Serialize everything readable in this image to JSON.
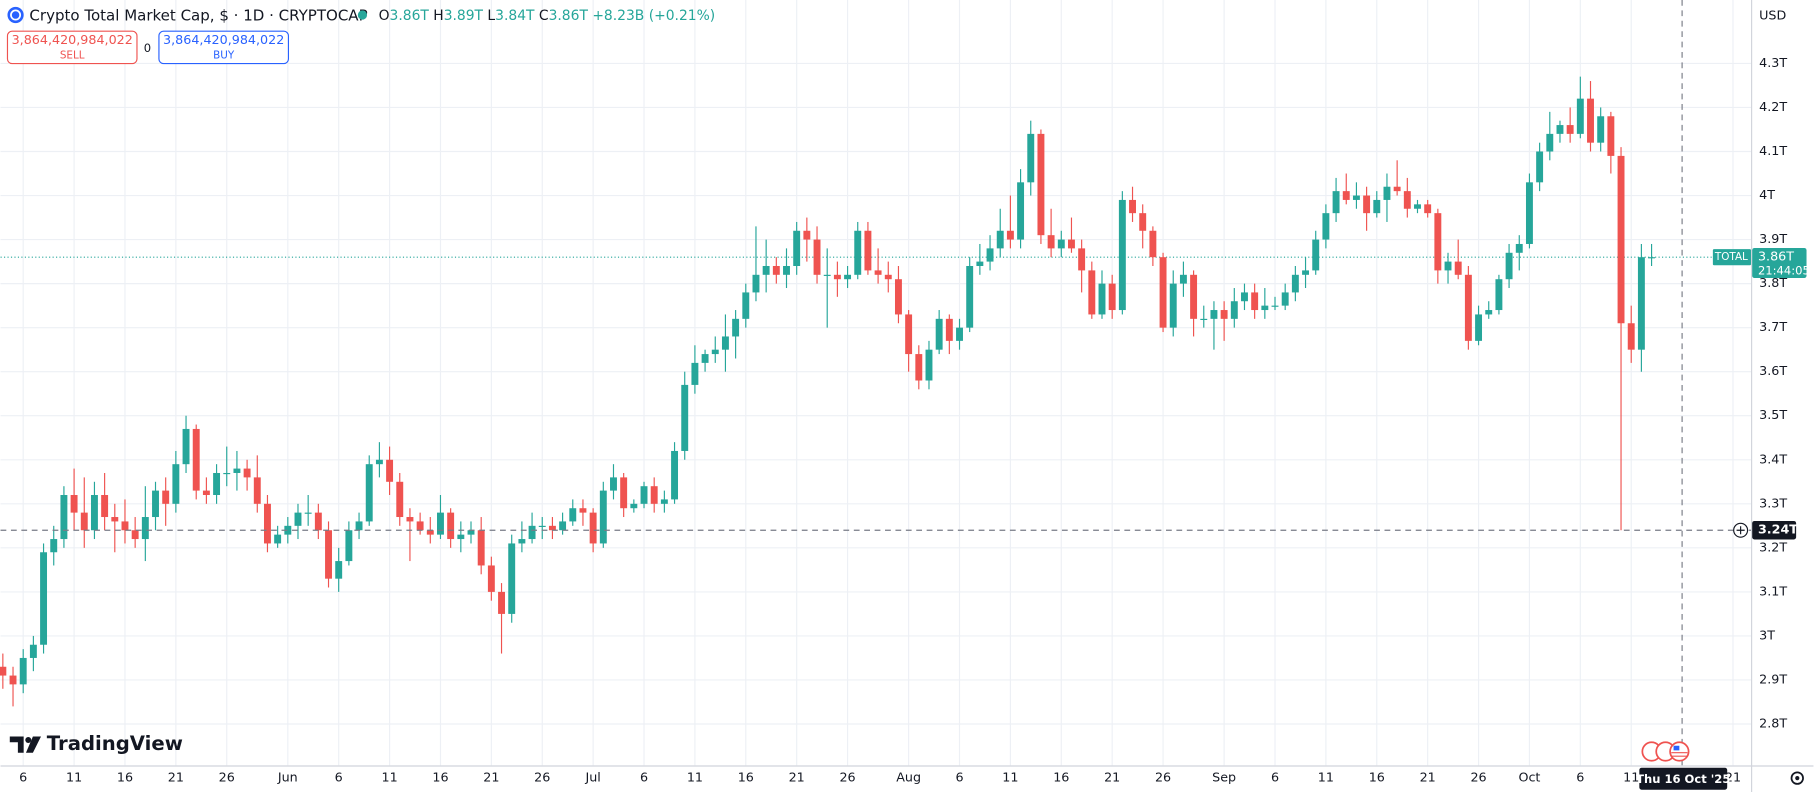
{
  "chart_data": {
    "type": "candlestick",
    "title": "Crypto Total Market Cap, $ · 1D · CRYPTOCAP",
    "legend_ohlc": [
      {
        "key": "O",
        "value": "3.86T"
      },
      {
        "key": "H",
        "value": "3.89T"
      },
      {
        "key": "L",
        "value": "3.84T"
      },
      {
        "key": "C",
        "value": "3.86T"
      }
    ],
    "change": "+8.23B (+0.21%)",
    "sell": {
      "price": "3,864,420,984,022",
      "label": "SELL"
    },
    "spread": "0",
    "buy": {
      "price": "3,864,420,984,022",
      "label": "BUY"
    },
    "currency": "USD",
    "up_color": "#26a69a",
    "down_color": "#ef5350",
    "x": [
      "2025-05-04",
      "2025-05-05",
      "2025-05-06",
      "2025-05-07",
      "2025-05-08",
      "2025-05-09",
      "2025-05-10",
      "2025-05-11",
      "2025-05-12",
      "2025-05-13",
      "2025-05-14",
      "2025-05-15",
      "2025-05-16",
      "2025-05-17",
      "2025-05-18",
      "2025-05-19",
      "2025-05-20",
      "2025-05-21",
      "2025-05-22",
      "2025-05-23",
      "2025-05-24",
      "2025-05-25",
      "2025-05-26",
      "2025-05-27",
      "2025-05-28",
      "2025-05-29",
      "2025-05-30",
      "2025-05-31",
      "2025-06-01",
      "2025-06-02",
      "2025-06-03",
      "2025-06-04",
      "2025-06-05",
      "2025-06-06",
      "2025-06-07",
      "2025-06-08",
      "2025-06-09",
      "2025-06-10",
      "2025-06-11",
      "2025-06-12",
      "2025-06-13",
      "2025-06-14",
      "2025-06-15",
      "2025-06-16",
      "2025-06-17",
      "2025-06-18",
      "2025-06-19",
      "2025-06-20",
      "2025-06-21",
      "2025-06-22",
      "2025-06-23",
      "2025-06-24",
      "2025-06-25",
      "2025-06-26",
      "2025-06-27",
      "2025-06-28",
      "2025-06-29",
      "2025-06-30",
      "2025-07-01",
      "2025-07-02",
      "2025-07-03",
      "2025-07-04",
      "2025-07-05",
      "2025-07-06",
      "2025-07-07",
      "2025-07-08",
      "2025-07-09",
      "2025-07-10",
      "2025-07-11",
      "2025-07-12",
      "2025-07-13",
      "2025-07-14",
      "2025-07-15",
      "2025-07-16",
      "2025-07-17",
      "2025-07-18",
      "2025-07-19",
      "2025-07-20",
      "2025-07-21",
      "2025-07-22",
      "2025-07-23",
      "2025-07-24",
      "2025-07-25",
      "2025-07-26",
      "2025-07-27",
      "2025-07-28",
      "2025-07-29",
      "2025-07-30",
      "2025-07-31",
      "2025-08-01",
      "2025-08-02",
      "2025-08-03",
      "2025-08-04",
      "2025-08-05",
      "2025-08-06",
      "2025-08-07",
      "2025-08-08",
      "2025-08-09",
      "2025-08-10",
      "2025-08-11",
      "2025-08-12",
      "2025-08-13",
      "2025-08-14",
      "2025-08-15",
      "2025-08-16",
      "2025-08-17",
      "2025-08-18",
      "2025-08-19",
      "2025-08-20",
      "2025-08-21",
      "2025-08-22",
      "2025-08-23",
      "2025-08-24",
      "2025-08-25",
      "2025-08-26",
      "2025-08-27",
      "2025-08-28",
      "2025-08-29",
      "2025-08-30",
      "2025-08-31",
      "2025-09-01",
      "2025-09-02",
      "2025-09-03",
      "2025-09-04",
      "2025-09-05",
      "2025-09-06",
      "2025-09-07",
      "2025-09-08",
      "2025-09-09",
      "2025-09-10",
      "2025-09-11",
      "2025-09-12",
      "2025-09-13",
      "2025-09-14",
      "2025-09-15",
      "2025-09-16",
      "2025-09-17",
      "2025-09-18",
      "2025-09-19",
      "2025-09-20",
      "2025-09-21",
      "2025-09-22",
      "2025-09-23",
      "2025-09-24",
      "2025-09-25",
      "2025-09-26",
      "2025-09-27",
      "2025-09-28",
      "2025-09-29",
      "2025-09-30",
      "2025-10-01",
      "2025-10-02",
      "2025-10-03",
      "2025-10-04",
      "2025-10-05",
      "2025-10-06",
      "2025-10-07",
      "2025-10-08",
      "2025-10-09",
      "2025-10-10",
      "2025-10-11",
      "2025-10-12",
      "2025-10-13"
    ],
    "ohlc": [
      [
        2.93,
        2.96,
        2.88,
        2.91
      ],
      [
        2.91,
        2.93,
        2.84,
        2.89
      ],
      [
        2.89,
        2.97,
        2.87,
        2.95
      ],
      [
        2.95,
        3.0,
        2.92,
        2.98
      ],
      [
        2.98,
        3.21,
        2.96,
        3.19
      ],
      [
        3.19,
        3.25,
        3.16,
        3.22
      ],
      [
        3.22,
        3.34,
        3.2,
        3.32
      ],
      [
        3.32,
        3.38,
        3.24,
        3.28
      ],
      [
        3.28,
        3.36,
        3.2,
        3.24
      ],
      [
        3.24,
        3.35,
        3.22,
        3.32
      ],
      [
        3.32,
        3.37,
        3.24,
        3.27
      ],
      [
        3.27,
        3.3,
        3.19,
        3.26
      ],
      [
        3.26,
        3.31,
        3.21,
        3.24
      ],
      [
        3.24,
        3.27,
        3.2,
        3.22
      ],
      [
        3.22,
        3.34,
        3.17,
        3.27
      ],
      [
        3.27,
        3.35,
        3.24,
        3.33
      ],
      [
        3.33,
        3.36,
        3.25,
        3.3
      ],
      [
        3.3,
        3.42,
        3.28,
        3.39
      ],
      [
        3.39,
        3.5,
        3.37,
        3.47
      ],
      [
        3.47,
        3.48,
        3.31,
        3.33
      ],
      [
        3.33,
        3.36,
        3.3,
        3.32
      ],
      [
        3.32,
        3.39,
        3.3,
        3.37
      ],
      [
        3.37,
        3.43,
        3.34,
        3.37
      ],
      [
        3.37,
        3.42,
        3.33,
        3.38
      ],
      [
        3.38,
        3.4,
        3.33,
        3.36
      ],
      [
        3.36,
        3.41,
        3.28,
        3.3
      ],
      [
        3.3,
        3.32,
        3.19,
        3.21
      ],
      [
        3.21,
        3.25,
        3.2,
        3.23
      ],
      [
        3.23,
        3.27,
        3.21,
        3.25
      ],
      [
        3.25,
        3.3,
        3.22,
        3.28
      ],
      [
        3.28,
        3.32,
        3.25,
        3.28
      ],
      [
        3.28,
        3.3,
        3.22,
        3.24
      ],
      [
        3.24,
        3.26,
        3.11,
        3.13
      ],
      [
        3.13,
        3.2,
        3.1,
        3.17
      ],
      [
        3.17,
        3.26,
        3.16,
        3.24
      ],
      [
        3.24,
        3.28,
        3.22,
        3.26
      ],
      [
        3.26,
        3.41,
        3.25,
        3.39
      ],
      [
        3.39,
        3.44,
        3.36,
        3.4
      ],
      [
        3.4,
        3.43,
        3.32,
        3.35
      ],
      [
        3.35,
        3.37,
        3.25,
        3.27
      ],
      [
        3.27,
        3.29,
        3.17,
        3.26
      ],
      [
        3.26,
        3.28,
        3.23,
        3.24
      ],
      [
        3.24,
        3.27,
        3.21,
        3.23
      ],
      [
        3.23,
        3.32,
        3.22,
        3.28
      ],
      [
        3.28,
        3.29,
        3.2,
        3.22
      ],
      [
        3.22,
        3.26,
        3.19,
        3.23
      ],
      [
        3.23,
        3.26,
        3.21,
        3.24
      ],
      [
        3.24,
        3.27,
        3.14,
        3.16
      ],
      [
        3.16,
        3.18,
        3.08,
        3.1
      ],
      [
        3.1,
        3.12,
        2.96,
        3.05
      ],
      [
        3.05,
        3.23,
        3.03,
        3.21
      ],
      [
        3.21,
        3.26,
        3.19,
        3.22
      ],
      [
        3.22,
        3.28,
        3.21,
        3.25
      ],
      [
        3.25,
        3.27,
        3.22,
        3.25
      ],
      [
        3.25,
        3.27,
        3.22,
        3.24
      ],
      [
        3.24,
        3.28,
        3.23,
        3.26
      ],
      [
        3.26,
        3.31,
        3.25,
        3.29
      ],
      [
        3.29,
        3.31,
        3.25,
        3.28
      ],
      [
        3.28,
        3.29,
        3.19,
        3.21
      ],
      [
        3.21,
        3.35,
        3.2,
        3.33
      ],
      [
        3.33,
        3.39,
        3.31,
        3.36
      ],
      [
        3.36,
        3.37,
        3.27,
        3.29
      ],
      [
        3.29,
        3.31,
        3.28,
        3.3
      ],
      [
        3.3,
        3.35,
        3.29,
        3.34
      ],
      [
        3.34,
        3.36,
        3.28,
        3.3
      ],
      [
        3.3,
        3.33,
        3.28,
        3.31
      ],
      [
        3.31,
        3.44,
        3.3,
        3.42
      ],
      [
        3.42,
        3.6,
        3.4,
        3.57
      ],
      [
        3.57,
        3.66,
        3.55,
        3.62
      ],
      [
        3.62,
        3.65,
        3.6,
        3.64
      ],
      [
        3.64,
        3.68,
        3.62,
        3.65
      ],
      [
        3.65,
        3.73,
        3.6,
        3.68
      ],
      [
        3.68,
        3.74,
        3.63,
        3.72
      ],
      [
        3.72,
        3.8,
        3.7,
        3.78
      ],
      [
        3.78,
        3.93,
        3.76,
        3.82
      ],
      [
        3.82,
        3.9,
        3.78,
        3.84
      ],
      [
        3.84,
        3.86,
        3.8,
        3.82
      ],
      [
        3.82,
        3.88,
        3.79,
        3.84
      ],
      [
        3.84,
        3.94,
        3.82,
        3.92
      ],
      [
        3.92,
        3.95,
        3.85,
        3.9
      ],
      [
        3.9,
        3.93,
        3.8,
        3.82
      ],
      [
        3.82,
        3.88,
        3.7,
        3.82
      ],
      [
        3.82,
        3.85,
        3.77,
        3.81
      ],
      [
        3.81,
        3.84,
        3.79,
        3.82
      ],
      [
        3.82,
        3.94,
        3.81,
        3.92
      ],
      [
        3.92,
        3.94,
        3.82,
        3.83
      ],
      [
        3.83,
        3.88,
        3.8,
        3.82
      ],
      [
        3.82,
        3.85,
        3.78,
        3.81
      ],
      [
        3.81,
        3.84,
        3.71,
        3.73
      ],
      [
        3.73,
        3.74,
        3.6,
        3.64
      ],
      [
        3.64,
        3.66,
        3.56,
        3.58
      ],
      [
        3.58,
        3.67,
        3.56,
        3.65
      ],
      [
        3.65,
        3.74,
        3.64,
        3.72
      ],
      [
        3.72,
        3.73,
        3.64,
        3.67
      ],
      [
        3.67,
        3.72,
        3.65,
        3.7
      ],
      [
        3.7,
        3.86,
        3.69,
        3.84
      ],
      [
        3.84,
        3.89,
        3.82,
        3.85
      ],
      [
        3.85,
        3.91,
        3.83,
        3.88
      ],
      [
        3.88,
        3.97,
        3.86,
        3.92
      ],
      [
        3.92,
        4.0,
        3.88,
        3.9
      ],
      [
        3.9,
        4.06,
        3.88,
        4.03
      ],
      [
        4.03,
        4.17,
        4.0,
        4.14
      ],
      [
        4.14,
        4.15,
        3.89,
        3.91
      ],
      [
        3.91,
        3.97,
        3.86,
        3.88
      ],
      [
        3.88,
        3.92,
        3.86,
        3.9
      ],
      [
        3.9,
        3.95,
        3.87,
        3.88
      ],
      [
        3.88,
        3.9,
        3.78,
        3.83
      ],
      [
        3.83,
        3.85,
        3.72,
        3.73
      ],
      [
        3.73,
        3.83,
        3.72,
        3.8
      ],
      [
        3.8,
        3.82,
        3.72,
        3.74
      ],
      [
        3.74,
        4.01,
        3.73,
        3.99
      ],
      [
        3.99,
        4.02,
        3.94,
        3.96
      ],
      [
        3.96,
        3.98,
        3.88,
        3.92
      ],
      [
        3.92,
        3.93,
        3.84,
        3.86
      ],
      [
        3.86,
        3.87,
        3.69,
        3.7
      ],
      [
        3.7,
        3.83,
        3.68,
        3.8
      ],
      [
        3.8,
        3.85,
        3.77,
        3.82
      ],
      [
        3.82,
        3.83,
        3.68,
        3.72
      ],
      [
        3.72,
        3.75,
        3.7,
        3.72
      ],
      [
        3.72,
        3.76,
        3.65,
        3.74
      ],
      [
        3.74,
        3.76,
        3.67,
        3.72
      ],
      [
        3.72,
        3.79,
        3.7,
        3.76
      ],
      [
        3.76,
        3.8,
        3.74,
        3.78
      ],
      [
        3.78,
        3.8,
        3.72,
        3.74
      ],
      [
        3.74,
        3.79,
        3.72,
        3.75
      ],
      [
        3.75,
        3.77,
        3.74,
        3.75
      ],
      [
        3.75,
        3.8,
        3.74,
        3.78
      ],
      [
        3.78,
        3.84,
        3.76,
        3.82
      ],
      [
        3.82,
        3.86,
        3.79,
        3.83
      ],
      [
        3.83,
        3.92,
        3.82,
        3.9
      ],
      [
        3.9,
        3.98,
        3.88,
        3.96
      ],
      [
        3.96,
        4.04,
        3.94,
        4.01
      ],
      [
        4.01,
        4.05,
        3.98,
        3.99
      ],
      [
        3.99,
        4.03,
        3.97,
        4.0
      ],
      [
        4.0,
        4.02,
        3.92,
        3.96
      ],
      [
        3.96,
        4.01,
        3.95,
        3.99
      ],
      [
        3.99,
        4.05,
        3.94,
        4.02
      ],
      [
        4.02,
        4.08,
        4.0,
        4.01
      ],
      [
        4.01,
        4.04,
        3.95,
        3.97
      ],
      [
        3.97,
        3.99,
        3.96,
        3.98
      ],
      [
        3.98,
        3.99,
        3.95,
        3.96
      ],
      [
        3.96,
        3.97,
        3.8,
        3.83
      ],
      [
        3.83,
        3.87,
        3.8,
        3.85
      ],
      [
        3.85,
        3.9,
        3.81,
        3.82
      ],
      [
        3.82,
        3.84,
        3.65,
        3.67
      ],
      [
        3.67,
        3.75,
        3.66,
        3.73
      ],
      [
        3.73,
        3.76,
        3.72,
        3.74
      ],
      [
        3.74,
        3.82,
        3.73,
        3.81
      ],
      [
        3.81,
        3.89,
        3.79,
        3.87
      ],
      [
        3.87,
        3.91,
        3.83,
        3.89
      ],
      [
        3.89,
        4.05,
        3.88,
        4.03
      ],
      [
        4.03,
        4.12,
        4.01,
        4.1
      ],
      [
        4.1,
        4.19,
        4.08,
        4.14
      ],
      [
        4.14,
        4.17,
        4.12,
        4.16
      ],
      [
        4.16,
        4.2,
        4.12,
        4.14
      ],
      [
        4.14,
        4.27,
        4.13,
        4.22
      ],
      [
        4.22,
        4.26,
        4.1,
        4.12
      ],
      [
        4.12,
        4.2,
        4.1,
        4.18
      ],
      [
        4.18,
        4.19,
        4.05,
        4.09
      ],
      [
        4.09,
        4.11,
        3.24,
        3.71
      ],
      [
        3.71,
        3.75,
        3.62,
        3.65
      ],
      [
        3.65,
        3.89,
        3.6,
        3.86
      ],
      [
        3.86,
        3.89,
        3.84,
        3.86
      ]
    ],
    "xlim": [
      "2025-05-04",
      "2025-10-23"
    ],
    "xticks": [
      {
        "value": "2025-05-06",
        "label": "6"
      },
      {
        "value": "2025-05-11",
        "label": "11"
      },
      {
        "value": "2025-05-16",
        "label": "16"
      },
      {
        "value": "2025-05-21",
        "label": "21"
      },
      {
        "value": "2025-05-26",
        "label": "26"
      },
      {
        "value": "2025-06-01",
        "label": "Jun"
      },
      {
        "value": "2025-06-06",
        "label": "6"
      },
      {
        "value": "2025-06-11",
        "label": "11"
      },
      {
        "value": "2025-06-16",
        "label": "16"
      },
      {
        "value": "2025-06-21",
        "label": "21"
      },
      {
        "value": "2025-06-26",
        "label": "26"
      },
      {
        "value": "2025-07-01",
        "label": "Jul"
      },
      {
        "value": "2025-07-06",
        "label": "6"
      },
      {
        "value": "2025-07-11",
        "label": "11"
      },
      {
        "value": "2025-07-16",
        "label": "16"
      },
      {
        "value": "2025-07-21",
        "label": "21"
      },
      {
        "value": "2025-07-26",
        "label": "26"
      },
      {
        "value": "2025-08-01",
        "label": "Aug"
      },
      {
        "value": "2025-08-06",
        "label": "6"
      },
      {
        "value": "2025-08-11",
        "label": "11"
      },
      {
        "value": "2025-08-16",
        "label": "16"
      },
      {
        "value": "2025-08-21",
        "label": "21"
      },
      {
        "value": "2025-08-26",
        "label": "26"
      },
      {
        "value": "2025-09-01",
        "label": "Sep"
      },
      {
        "value": "2025-09-06",
        "label": "6"
      },
      {
        "value": "2025-09-11",
        "label": "11"
      },
      {
        "value": "2025-09-16",
        "label": "16"
      },
      {
        "value": "2025-09-21",
        "label": "21"
      },
      {
        "value": "2025-09-26",
        "label": "26"
      },
      {
        "value": "2025-10-01",
        "label": "Oct"
      },
      {
        "value": "2025-10-06",
        "label": "6"
      },
      {
        "value": "2025-10-11",
        "label": "11"
      },
      {
        "value": "2025-10-21",
        "label": "21"
      }
    ],
    "ylim": [
      2.706,
      4.444
    ],
    "yticks": [
      {
        "value": 2.8,
        "label": "2.8T"
      },
      {
        "value": 2.9,
        "label": "2.9T"
      },
      {
        "value": 3,
        "label": "3T"
      },
      {
        "value": 3.1,
        "label": "3.1T"
      },
      {
        "value": 3.2,
        "label": "3.2T"
      },
      {
        "value": 3.3,
        "label": "3.3T"
      },
      {
        "value": 3.4,
        "label": "3.4T"
      },
      {
        "value": 3.5,
        "label": "3.5T"
      },
      {
        "value": 3.6,
        "label": "3.6T"
      },
      {
        "value": 3.7,
        "label": "3.7T"
      },
      {
        "value": 3.8,
        "label": "3.8T"
      },
      {
        "value": 3.9,
        "label": "3.9T"
      },
      {
        "value": 4,
        "label": "4T"
      },
      {
        "value": 4.1,
        "label": "4.1T"
      },
      {
        "value": 4.2,
        "label": "4.2T"
      },
      {
        "value": 4.3,
        "label": "4.3T"
      }
    ],
    "grid": true,
    "last_price": {
      "value": 3.86,
      "label": "3.86T"
    },
    "symbol_tag": "TOTAL",
    "countdown": "21:44:05",
    "crosshair": {
      "x": {
        "value": "2025-10-16",
        "label": "Thu 16 Oct '25"
      },
      "y": {
        "value": 3.24,
        "label": "3.24T"
      }
    },
    "brand": "TradingView"
  }
}
